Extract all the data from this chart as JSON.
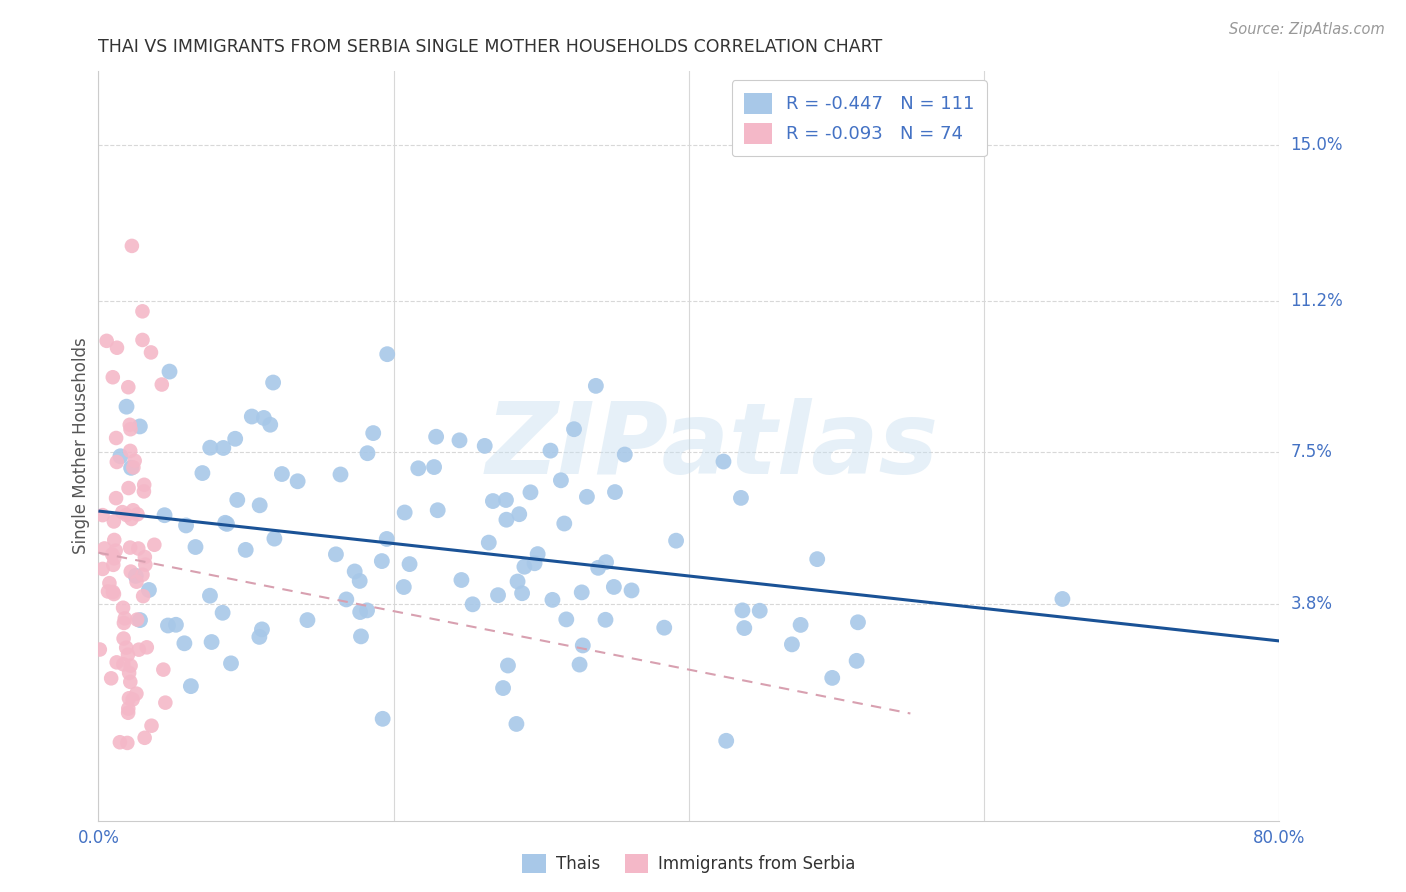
{
  "title": "THAI VS IMMIGRANTS FROM SERBIA SINGLE MOTHER HOUSEHOLDS CORRELATION CHART",
  "source": "Source: ZipAtlas.com",
  "ylabel": "Single Mother Households",
  "ytick_labels": [
    "15.0%",
    "11.2%",
    "7.5%",
    "3.8%"
  ],
  "ytick_values": [
    0.15,
    0.112,
    0.075,
    0.038
  ],
  "xlim": [
    0.0,
    0.8
  ],
  "ylim": [
    -0.015,
    0.168
  ],
  "thai_color": "#a8c8e8",
  "serbia_color": "#f4b8c8",
  "thai_R": -0.447,
  "thai_N": 111,
  "serbia_R": -0.093,
  "serbia_N": 74,
  "watermark": "ZIPatlas",
  "background_color": "#ffffff",
  "grid_color": "#d8d8d8",
  "title_color": "#333333",
  "axis_label_color": "#4472c4",
  "trend_blue": "#1a5296",
  "trend_pink": "#d8a0b0",
  "legend_text_color": "#4472c4",
  "xtick_positions": [
    0.0,
    0.2,
    0.4,
    0.6,
    0.8
  ]
}
